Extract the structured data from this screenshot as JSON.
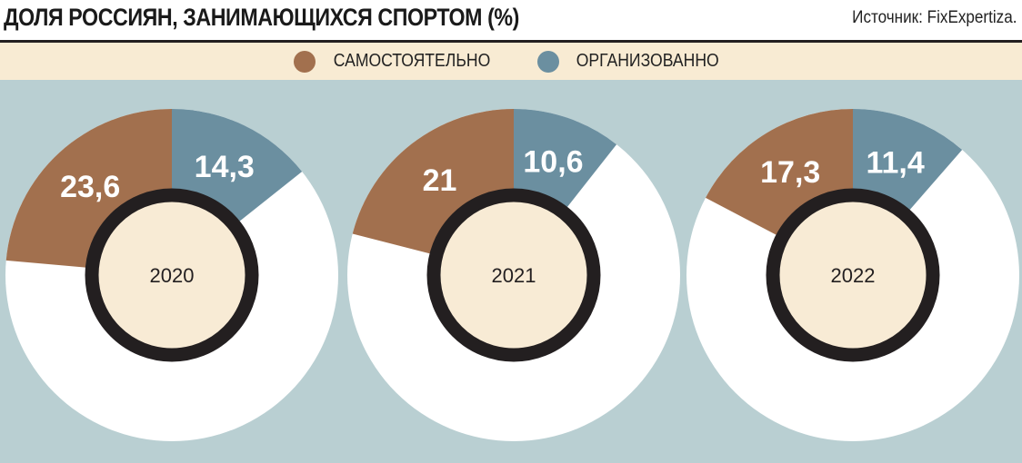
{
  "chart_data": {
    "type": "pie",
    "title": "ДОЛЯ РОССИЯН, ЗАНИМАЮЩИХСЯ СПОРТОМ (%)",
    "source": "Источник: FixExpertiza.",
    "legend": [
      {
        "name": "САМОСТОЯТЕЛЬНО",
        "color": "#a2704e"
      },
      {
        "name": "ОРГАНИЗОВАННО",
        "color": "#6b8fa0"
      }
    ],
    "charts": [
      {
        "year": "2020",
        "self": 23.6,
        "organized": 14.3,
        "self_label": "23,6",
        "organized_label": "14,3"
      },
      {
        "year": "2021",
        "self": 21,
        "organized": 10.6,
        "self_label": "21",
        "organized_label": "10,6"
      },
      {
        "year": "2022",
        "self": 17.3,
        "organized": 11.4,
        "self_label": "17,3",
        "organized_label": "11,4"
      }
    ]
  }
}
